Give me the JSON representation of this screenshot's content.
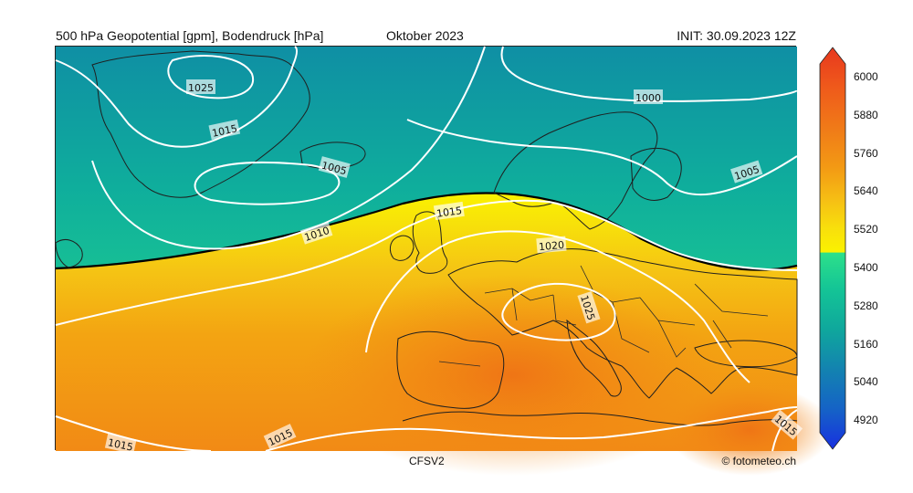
{
  "header": {
    "left": "500 hPa Geopotential [gpm], Bodendruck [hPa]",
    "center": "Oktober 2023",
    "right": "INIT: 30.09.2023 12Z"
  },
  "footer": {
    "model": "CFSV2",
    "credit": "© fotometeo.ch"
  },
  "colorbar": {
    "ticks": [
      "6000",
      "5880",
      "5760",
      "5640",
      "5520",
      "5400",
      "5280",
      "5160",
      "5040",
      "4920"
    ],
    "colors": [
      "#e8381e",
      "#f0641a",
      "#f28018",
      "#f5a314",
      "#f7c414",
      "#f5e00c",
      "#fbf200",
      "#2de08a",
      "#14c596",
      "#0fa89c",
      "#1383b0",
      "#1563c6",
      "#1745d8",
      "#1830e0"
    ]
  },
  "isobar_labels": {
    "l1025_top": "1025",
    "l1015_a": "1015",
    "l1005_a": "1005",
    "l1000": "1000",
    "l1005_b": "1005",
    "l1010": "1010",
    "l1015_b": "1015",
    "l1020": "1020",
    "l1025_mid": "1025",
    "l1015_c": "1015",
    "l1015_d": "1015",
    "l1015_e": "1015"
  },
  "map_colors": {
    "low_height": "#0e9e9a",
    "mid_height": "#2bd88d",
    "contour_5520": "#fbf200",
    "high_height": "#f39a12",
    "peak_height": "#f07c15"
  }
}
